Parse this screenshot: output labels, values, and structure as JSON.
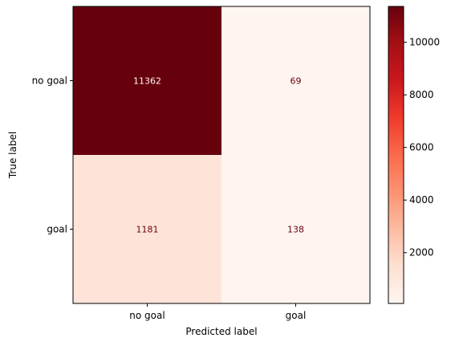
{
  "chart_data": {
    "type": "heatmap",
    "title": "",
    "xlabel": "Predicted label",
    "ylabel": "True label",
    "x_categories": [
      "no goal",
      "goal"
    ],
    "y_categories": [
      "no goal",
      "goal"
    ],
    "matrix": [
      [
        11362,
        69
      ],
      [
        1181,
        138
      ]
    ],
    "colormap": "Reds",
    "colorbar": {
      "min": 69,
      "max": 11362,
      "ticks": [
        2000,
        4000,
        6000,
        8000,
        10000
      ]
    },
    "grid": false
  }
}
